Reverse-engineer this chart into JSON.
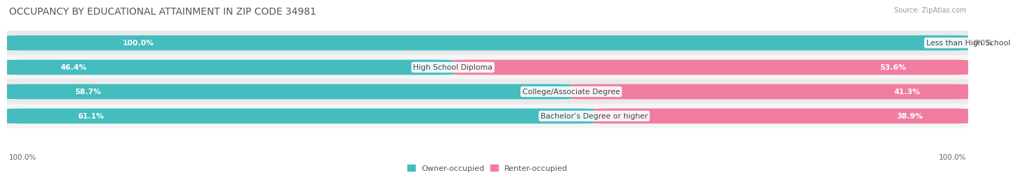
{
  "title": "OCCUPANCY BY EDUCATIONAL ATTAINMENT IN ZIP CODE 34981",
  "source": "Source: ZipAtlas.com",
  "categories": [
    "Less than High School",
    "High School Diploma",
    "College/Associate Degree",
    "Bachelor’s Degree or higher"
  ],
  "owner_pct": [
    100.0,
    46.4,
    58.7,
    61.1
  ],
  "renter_pct": [
    0.0,
    53.6,
    41.3,
    38.9
  ],
  "owner_color": "#45BCBE",
  "renter_color": "#F07DA0",
  "row_bg_colors": [
    "#EAEAEA",
    "#F5F5F5",
    "#EAEAEA",
    "#F5F5F5"
  ],
  "title_fontsize": 10,
  "label_fontsize": 7.8,
  "value_fontsize": 7.8,
  "legend_fontsize": 8,
  "axis_label_fontsize": 7.5,
  "background_color": "#FFFFFF"
}
